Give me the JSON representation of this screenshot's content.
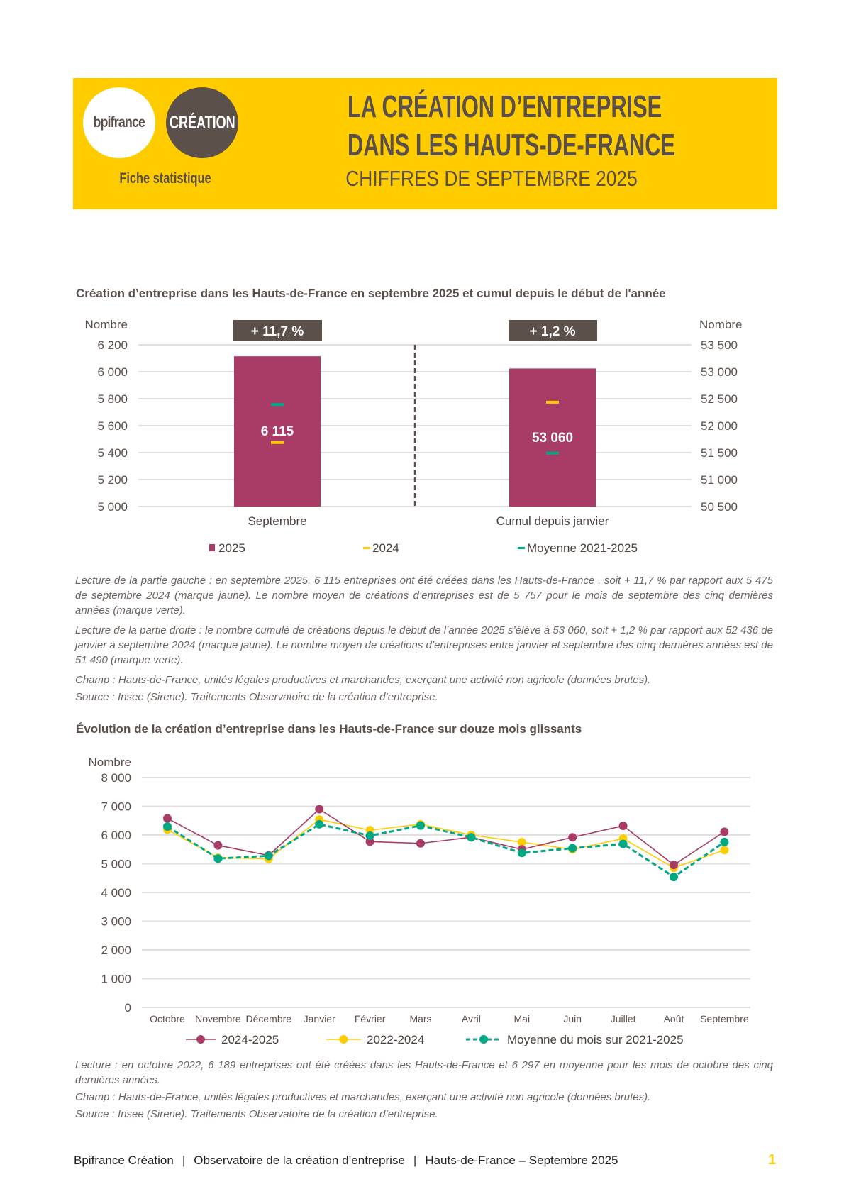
{
  "header": {
    "logo_bpi": "bpifrance",
    "logo_creation": "CRÉATION",
    "subtitle_left": "Fiche statistique",
    "title_line1": "LA CRÉATION D’ENTREPRISE",
    "title_line2": "DANS LES HAUTS-DE-FRANCE",
    "title_line3": "CHIFFRES DE SEPTEMBRE 2025"
  },
  "colors": {
    "header_bg": "#ffcc00",
    "text": "#5b4f4b",
    "series_2025": "#a93b67",
    "series_2024": "#ffcc00",
    "series_avg": "#00a884"
  },
  "section1": {
    "title": "Création d’entreprise dans les Hauts-de-France  en septembre 2025 et cumul depuis le début de l'année"
  },
  "chart_data": [
    {
      "type": "bar",
      "title": "Création d’entreprise dans les Hauts-de-France  en septembre 2025 et cumul depuis le début de l'année",
      "panels": [
        {
          "category": "Septembre",
          "axis": "left",
          "ylabel": "Nombre",
          "ylim": [
            5000,
            6200
          ],
          "ticks": [
            "5 000",
            "5 200",
            "5 400",
            "5 600",
            "5 800",
            "6 000",
            "6 200"
          ],
          "tick_values": [
            5000,
            5200,
            5400,
            5600,
            5800,
            6000,
            6200
          ],
          "value": 6115,
          "value_label": "6 115",
          "mark_2024": 5475,
          "mark_avg": 5757,
          "badge": "+ 11,7 %"
        },
        {
          "category": "Cumul depuis janvier",
          "axis": "right",
          "ylabel": "Nombre",
          "ylim": [
            50500,
            53500
          ],
          "ticks": [
            "50 500",
            "51 000",
            "51 500",
            "52 000",
            "52 500",
            "53 000",
            "53 500"
          ],
          "tick_values": [
            50500,
            51000,
            51500,
            52000,
            52500,
            53000,
            53500
          ],
          "value": 53060,
          "value_label": "53 060",
          "mark_2024": 52436,
          "mark_avg": 51490,
          "badge": "+ 1,2 %"
        }
      ],
      "legend": [
        "2025",
        "2024",
        "Moyenne 2021-2025"
      ],
      "legend_placement": "bottom",
      "grid": true
    },
    {
      "type": "line",
      "title": "Évolution de la création d’entreprise dans les Hauts-de-France  sur douze mois glissants",
      "ylabel": "Nombre",
      "ylim": [
        0,
        8000
      ],
      "ticks": [
        "0",
        "1 000",
        "2 000",
        "3 000",
        "4 000",
        "5 000",
        "6 000",
        "7 000",
        "8 000"
      ],
      "categories": [
        "Octobre",
        "Novembre",
        "Décembre",
        "Janvier",
        "Février",
        "Mars",
        "Avril",
        "Mai",
        "Juin",
        "Juillet",
        "Août",
        "Septembre"
      ],
      "series": [
        {
          "name": "2024-2025",
          "color": "#a93b67",
          "style": "solid",
          "values": [
            6580,
            5640,
            5290,
            6900,
            5770,
            5710,
            5920,
            5500,
            5920,
            6320,
            4960,
            6115
          ]
        },
        {
          "name": "2022-2024",
          "color": "#ffcc00",
          "style": "solid",
          "values": [
            6189,
            5210,
            5170,
            6540,
            6170,
            6375,
            6000,
            5750,
            5500,
            5875,
            4860,
            5475
          ]
        },
        {
          "name": "Moyenne du mois sur 2021-2025",
          "color": "#00a884",
          "style": "dashed",
          "values": [
            6297,
            5180,
            5275,
            6375,
            5975,
            6330,
            5920,
            5375,
            5540,
            5690,
            4540,
            5757
          ]
        }
      ],
      "legend_placement": "bottom",
      "grid": true
    }
  ],
  "notes1": [
    "Lecture de la partie gauche : en septembre 2025, 6 115 entreprises ont été créées dans les Hauts-de-France , soit + 11,7 % par rapport aux 5 475 de septembre 2024 (marque jaune). Le nombre moyen de créations d’entreprises est de 5 757 pour le mois de septembre des cinq dernières années (marque verte).",
    "Lecture de la partie droite : le nombre cumulé de créations depuis le début de l’année 2025 s’élève à 53 060, soit + 1,2 % par rapport aux 52 436 de janvier à septembre 2024 (marque jaune). Le nombre moyen de créations d’entreprises entre janvier et septembre des cinq dernières années est de 51 490 (marque verte).",
    "Champ : Hauts-de-France, unités légales productives et marchandes, exerçant une activité non agricole (données brutes).",
    "Source : Insee (Sirene). Traitements Observatoire de la création d’entreprise."
  ],
  "section2": {
    "title": "Évolution de la création d’entreprise dans les Hauts-de-France  sur douze mois glissants"
  },
  "notes2": [
    "Lecture : en octobre 2022, 6 189 entreprises ont été créées dans les Hauts-de-France  et 6 297 en moyenne pour les mois de octobre des cinq dernières années.",
    "Champ : Hauts-de-France, unités légales productives et marchandes, exerçant une activité non agricole (données brutes).",
    "Source : Insee (Sirene). Traitements Observatoire de la création d’entreprise."
  ],
  "footer": {
    "part1": "Bpifrance Création",
    "part2": "Observatoire de la création d’entreprise",
    "part3": "Hauts-de-France – Septembre 2025",
    "separator": "|",
    "page": "1"
  }
}
